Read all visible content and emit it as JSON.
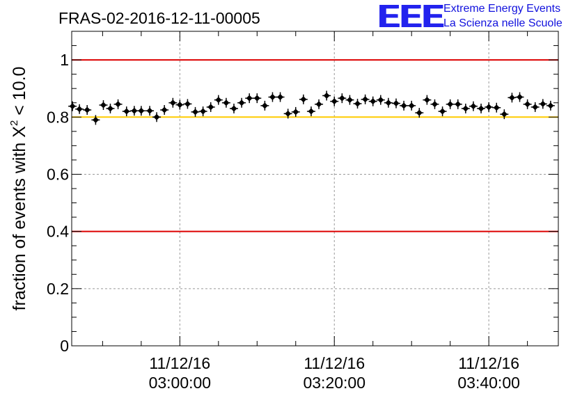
{
  "chart_data": {
    "type": "scatter",
    "title": "FRAS-02-2016-12-11-00005",
    "ylabel_prefix": "fraction of events with ",
    "ylabel_chi": "X",
    "ylabel_sup": "2",
    "ylabel_suffix": " < 10.0",
    "xlabel": "",
    "ylim": [
      0,
      1.1
    ],
    "xlim_min": [
      -14,
      49
    ],
    "yticks": [
      {
        "value": 0,
        "label": "0"
      },
      {
        "value": 0.2,
        "label": "0.2"
      },
      {
        "value": 0.4,
        "label": "0.4"
      },
      {
        "value": 0.6,
        "label": "0.6"
      },
      {
        "value": 0.8,
        "label": "0.8"
      },
      {
        "value": 1,
        "label": "1"
      }
    ],
    "xticks": [
      {
        "value": 0,
        "date": "11/12/16",
        "time": "03:00:00"
      },
      {
        "value": 20,
        "date": "11/12/16",
        "time": "03:20:00"
      },
      {
        "value": 40,
        "date": "11/12/16",
        "time": "03:40:00"
      }
    ],
    "grid": true,
    "reference_lines": [
      {
        "y": 1.0,
        "color": "#dd0000"
      },
      {
        "y": 0.8,
        "color": "#ffcc00"
      },
      {
        "y": 0.4,
        "color": "#dd0000"
      }
    ],
    "series": [
      {
        "marker_color": "#000000",
        "points": [
          [
            -13.9,
            0.838
          ],
          [
            -13.0,
            0.828
          ],
          [
            -12.0,
            0.825
          ],
          [
            -10.9,
            0.79
          ],
          [
            -9.9,
            0.842
          ],
          [
            -9.0,
            0.83
          ],
          [
            -8.0,
            0.845
          ],
          [
            -6.9,
            0.82
          ],
          [
            -5.9,
            0.822
          ],
          [
            -5.0,
            0.822
          ],
          [
            -3.9,
            0.822
          ],
          [
            -3.0,
            0.8
          ],
          [
            -2.0,
            0.825
          ],
          [
            -0.9,
            0.85
          ],
          [
            0.0,
            0.843
          ],
          [
            1.0,
            0.846
          ],
          [
            2.0,
            0.818
          ],
          [
            3.0,
            0.82
          ],
          [
            4.0,
            0.835
          ],
          [
            5.0,
            0.86
          ],
          [
            6.0,
            0.85
          ],
          [
            7.0,
            0.83
          ],
          [
            8.0,
            0.85
          ],
          [
            9.0,
            0.866
          ],
          [
            10.0,
            0.866
          ],
          [
            11.0,
            0.84
          ],
          [
            12.0,
            0.87
          ],
          [
            13.0,
            0.87
          ],
          [
            14.0,
            0.812
          ],
          [
            15.0,
            0.818
          ],
          [
            16.0,
            0.862
          ],
          [
            17.0,
            0.82
          ],
          [
            18.0,
            0.845
          ],
          [
            19.0,
            0.875
          ],
          [
            20.0,
            0.855
          ],
          [
            21.0,
            0.866
          ],
          [
            22.0,
            0.86
          ],
          [
            23.0,
            0.847
          ],
          [
            24.0,
            0.862
          ],
          [
            25.0,
            0.855
          ],
          [
            26.0,
            0.86
          ],
          [
            27.0,
            0.85
          ],
          [
            28.0,
            0.848
          ],
          [
            29.0,
            0.84
          ],
          [
            30.0,
            0.84
          ],
          [
            31.0,
            0.815
          ],
          [
            32.0,
            0.86
          ],
          [
            33.0,
            0.845
          ],
          [
            34.0,
            0.82
          ],
          [
            35.0,
            0.845
          ],
          [
            36.0,
            0.845
          ],
          [
            37.0,
            0.83
          ],
          [
            38.0,
            0.838
          ],
          [
            39.0,
            0.83
          ],
          [
            40.0,
            0.835
          ],
          [
            41.0,
            0.833
          ],
          [
            42.0,
            0.81
          ],
          [
            43.0,
            0.868
          ],
          [
            44.0,
            0.87
          ],
          [
            45.0,
            0.845
          ],
          [
            46.0,
            0.835
          ],
          [
            47.0,
            0.846
          ],
          [
            48.0,
            0.84
          ]
        ]
      }
    ]
  },
  "logo": {
    "mark": "EEE",
    "line1": "Extreme Energy Events",
    "line2": "La Scienza nelle Scuole"
  }
}
